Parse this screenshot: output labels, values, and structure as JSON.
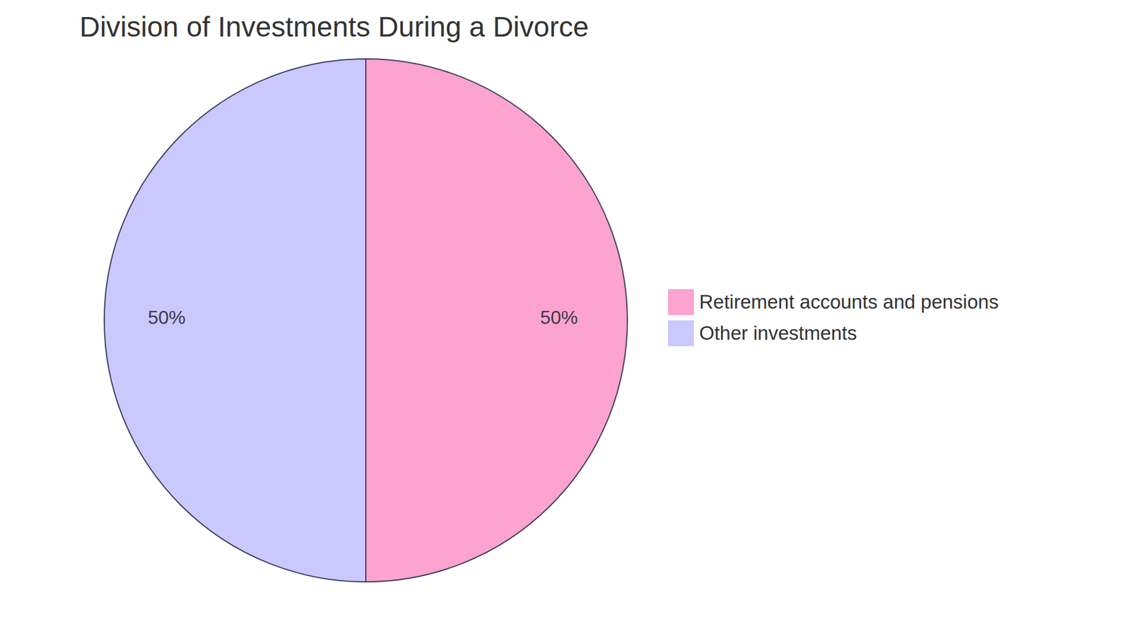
{
  "chart_data": {
    "type": "pie",
    "title": "Division of Investments During a Divorce",
    "categories": [
      "Retirement accounts and pensions",
      "Other investments"
    ],
    "values": [
      50,
      50
    ],
    "value_labels": [
      "50%",
      "50%"
    ],
    "colors": [
      "#FCA3CF",
      "#C9C9FD"
    ],
    "data_labels": true,
    "legend": "right"
  }
}
